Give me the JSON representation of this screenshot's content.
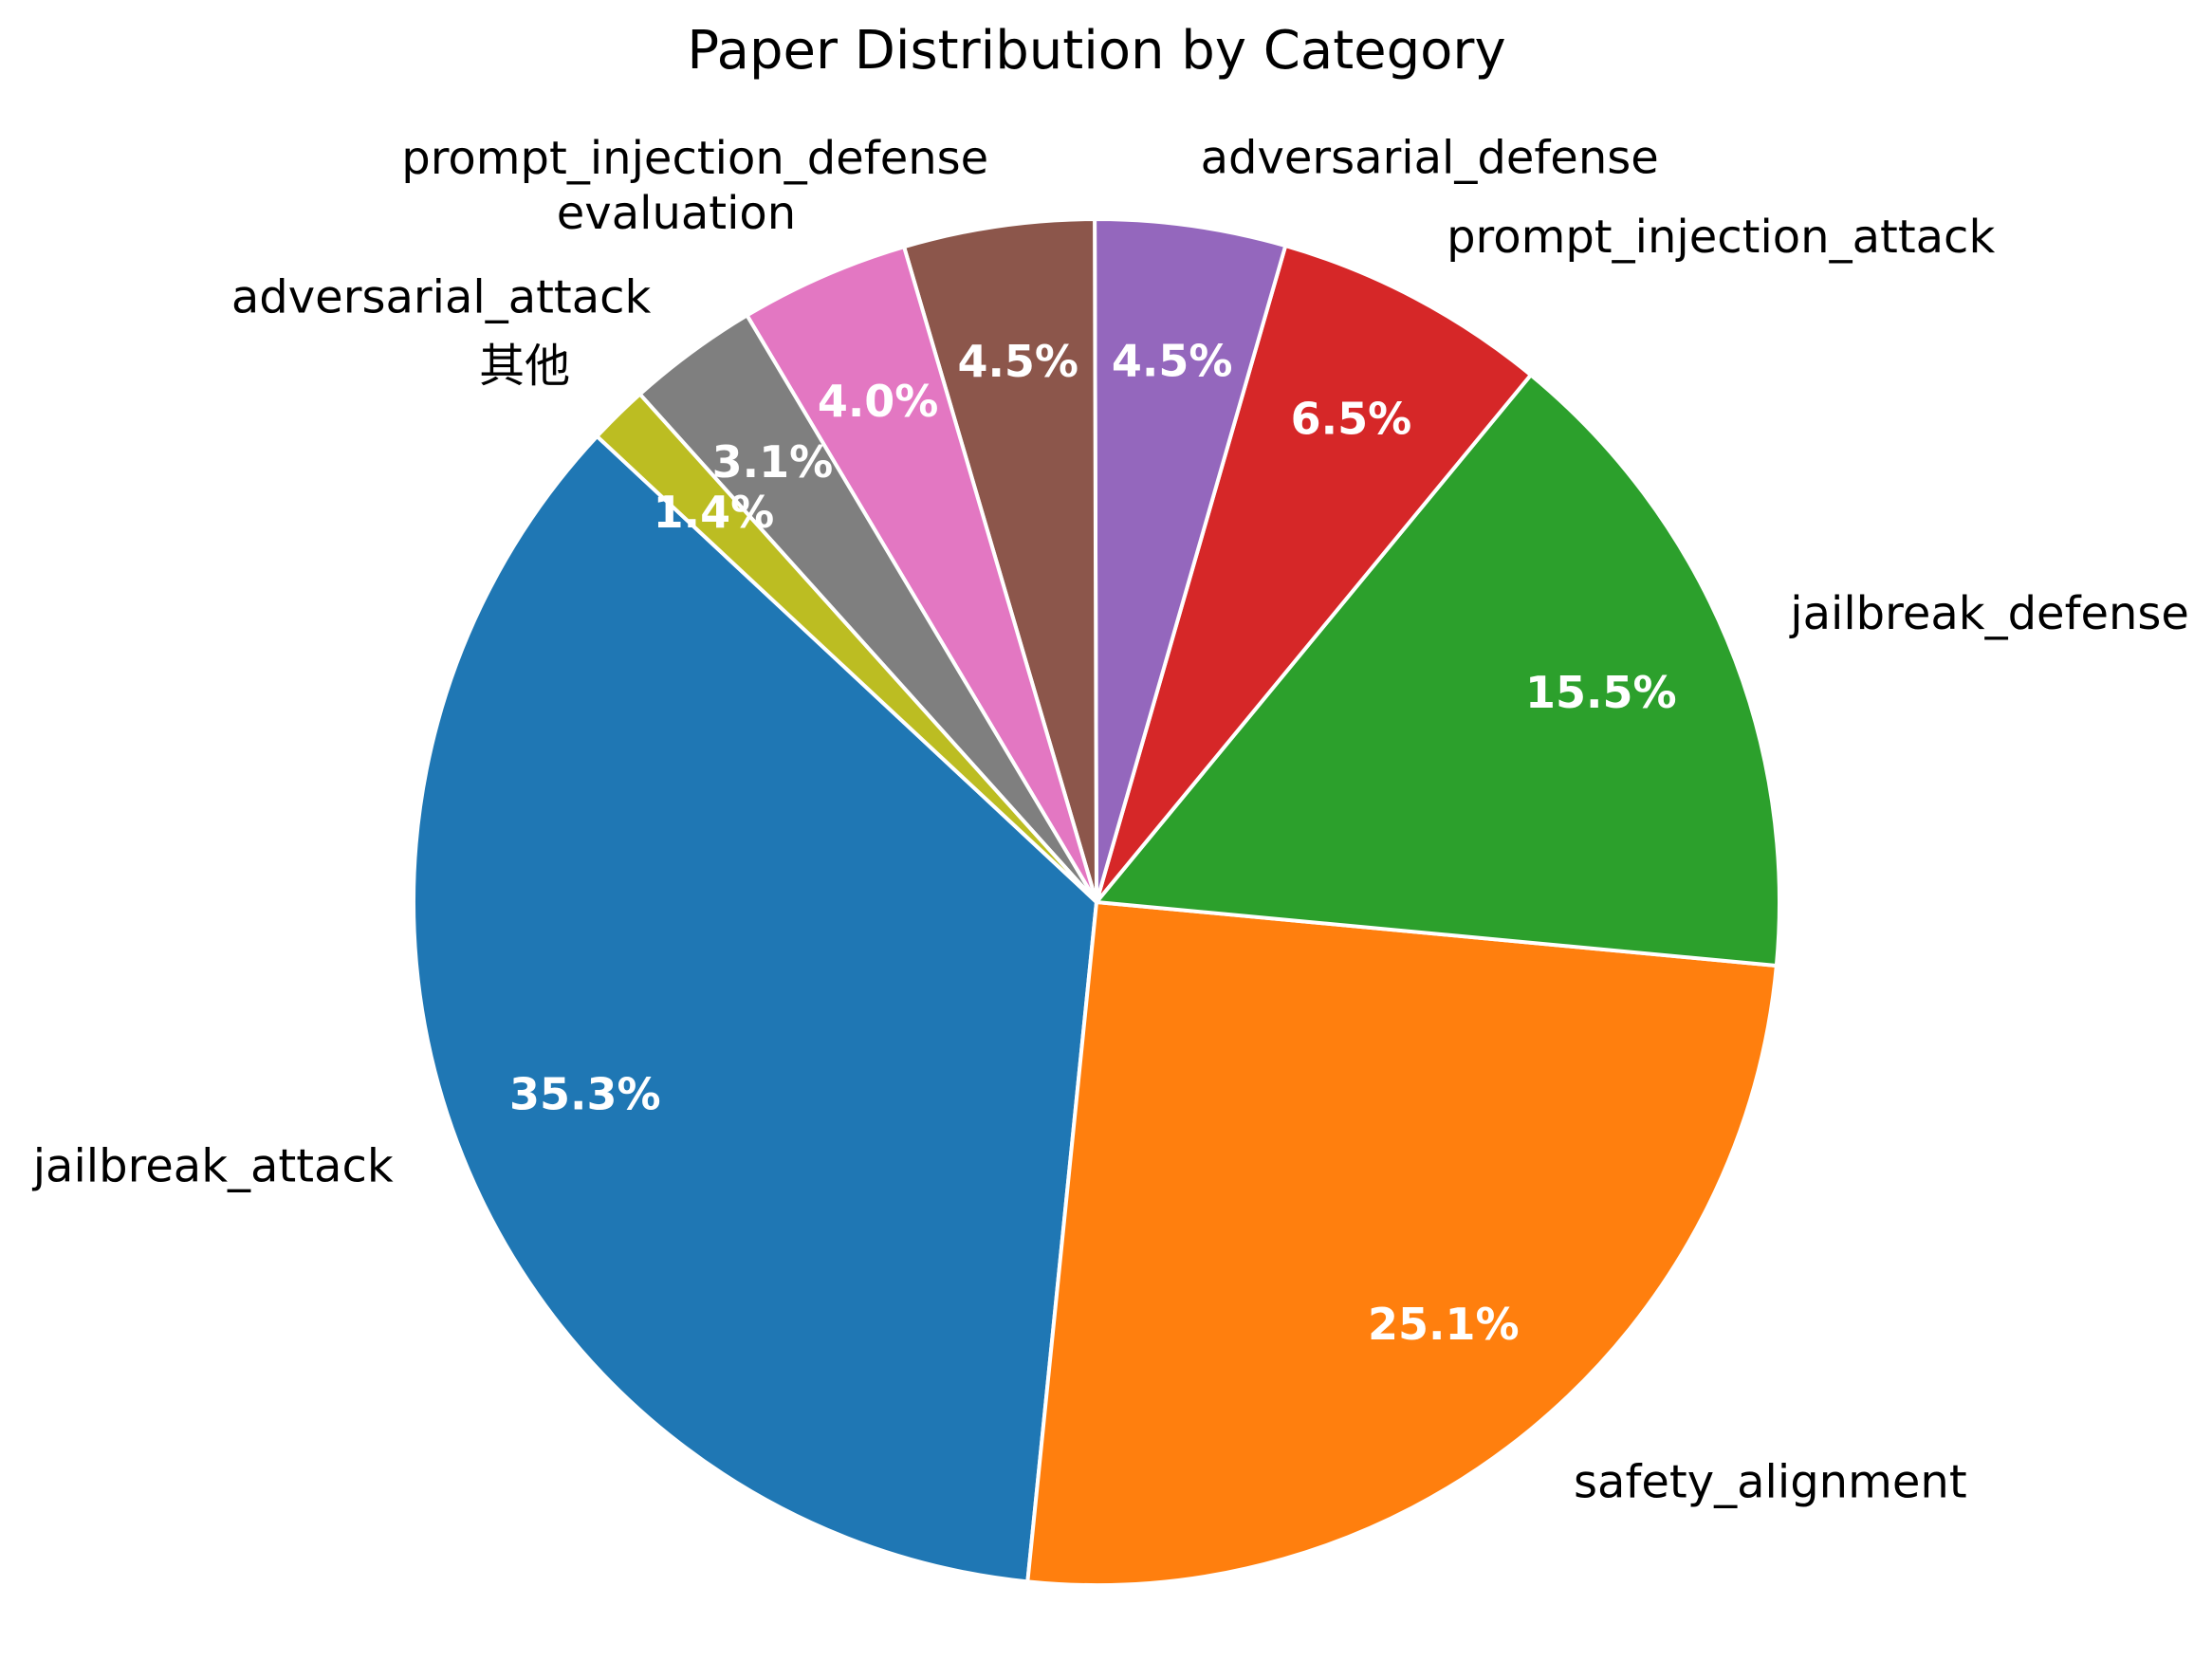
{
  "chart_data": {
    "type": "pie",
    "title": "Paper Distribution by Category",
    "start_angle_deg": 137,
    "direction": "counterclockwise",
    "slices": [
      {
        "label": "jailbreak_attack",
        "value": 35.3,
        "pct_label": "35.3%",
        "color": "#1f77b4"
      },
      {
        "label": "safety_alignment",
        "value": 25.1,
        "pct_label": "25.1%",
        "color": "#ff7f0e"
      },
      {
        "label": "jailbreak_defense",
        "value": 15.5,
        "pct_label": "15.5%",
        "color": "#2ca02c"
      },
      {
        "label": "prompt_injection_attack",
        "value": 6.5,
        "pct_label": "6.5%",
        "color": "#d62728"
      },
      {
        "label": "adversarial_defense",
        "value": 4.5,
        "pct_label": "4.5%",
        "color": "#9467bd"
      },
      {
        "label": "prompt_injection_defense",
        "value": 4.5,
        "pct_label": "4.5%",
        "color": "#8c564b"
      },
      {
        "label": "evaluation",
        "value": 4.0,
        "pct_label": "4.0%",
        "color": "#e377c2"
      },
      {
        "label": "adversarial_attack",
        "value": 3.1,
        "pct_label": "3.1%",
        "color": "#7f7f7f"
      },
      {
        "label": "其他",
        "value": 1.4,
        "pct_label": "1.4%",
        "color": "#bcbd22"
      }
    ]
  }
}
